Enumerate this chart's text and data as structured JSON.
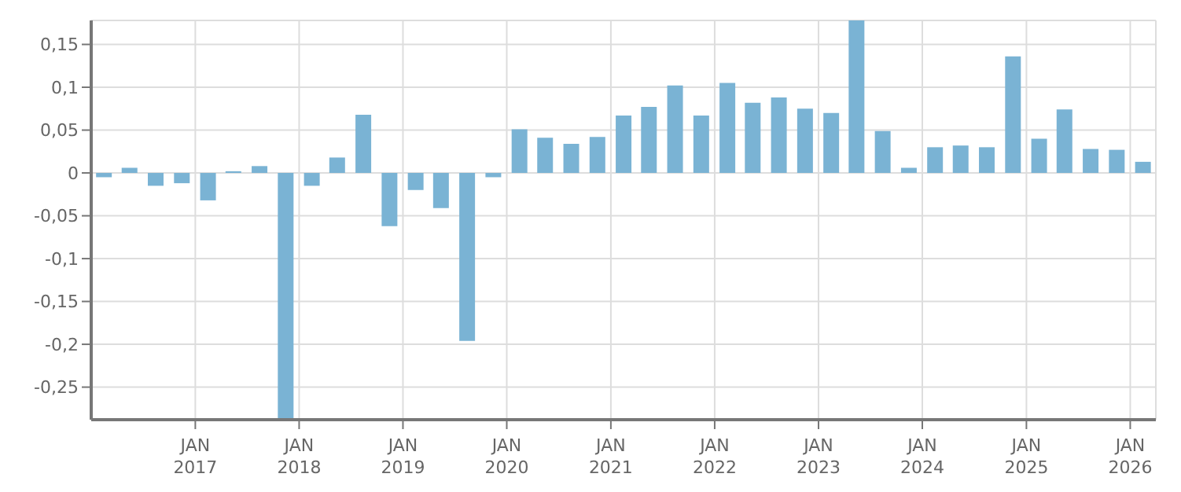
{
  "chart_data": {
    "type": "bar",
    "x": [
      "2016-02-15",
      "2016-05-15",
      "2016-08-15",
      "2016-11-15",
      "2017-02-15",
      "2017-05-15",
      "2017-08-15",
      "2017-11-15",
      "2018-02-15",
      "2018-05-15",
      "2018-08-15",
      "2018-11-15",
      "2019-02-15",
      "2019-05-15",
      "2019-08-15",
      "2019-11-15",
      "2020-02-15",
      "2020-05-15",
      "2020-08-15",
      "2020-11-15",
      "2021-02-15",
      "2021-05-15",
      "2021-08-15",
      "2021-11-15",
      "2022-02-15",
      "2022-05-15",
      "2022-08-15",
      "2022-11-15",
      "2023-02-15",
      "2023-05-15",
      "2023-08-15",
      "2023-11-15",
      "2024-02-15",
      "2024-05-15",
      "2024-08-15",
      "2024-11-15",
      "2025-02-15",
      "2025-05-15",
      "2025-08-15",
      "2025-11-15",
      "2026-02-15"
    ],
    "values": [
      -0.005,
      0.006,
      -0.015,
      -0.012,
      -0.032,
      0.002,
      0.008,
      -0.288,
      -0.015,
      0.018,
      0.068,
      -0.062,
      -0.02,
      -0.041,
      -0.196,
      -0.005,
      0.051,
      0.041,
      0.034,
      0.042,
      0.067,
      0.077,
      0.102,
      0.067,
      0.105,
      0.082,
      0.088,
      0.075,
      0.07,
      0.178,
      0.049,
      0.006,
      0.03,
      0.032,
      0.03,
      0.136,
      0.04,
      0.074,
      0.028,
      0.027,
      0.013
    ],
    "color": "#7ab3d4",
    "xlim": [
      "2016-01-01",
      "2026-04-01"
    ],
    "xticks": [
      {
        "value": "2017-01-01",
        "label": "JAN\n2017"
      },
      {
        "value": "2018-01-01",
        "label": "JAN\n2018"
      },
      {
        "value": "2019-01-01",
        "label": "JAN\n2019"
      },
      {
        "value": "2020-01-01",
        "label": "JAN\n2020"
      },
      {
        "value": "2021-01-01",
        "label": "JAN\n2021"
      },
      {
        "value": "2022-01-01",
        "label": "JAN\n2022"
      },
      {
        "value": "2023-01-01",
        "label": "JAN\n2023"
      },
      {
        "value": "2024-01-01",
        "label": "JAN\n2024"
      },
      {
        "value": "2025-01-01",
        "label": "JAN\n2025"
      },
      {
        "value": "2026-01-01",
        "label": "JAN\n2026"
      }
    ],
    "ylim": [
      -0.288,
      0.178
    ],
    "yticks": [
      {
        "value": -0.25,
        "label": "-0,25"
      },
      {
        "value": -0.2,
        "label": "-0,2"
      },
      {
        "value": -0.15,
        "label": "-0,15"
      },
      {
        "value": -0.1,
        "label": "-0,1"
      },
      {
        "value": -0.05,
        "label": "-0,05"
      },
      {
        "value": 0,
        "label": "0"
      },
      {
        "value": 0.05,
        "label": "0,05"
      },
      {
        "value": 0.1,
        "label": "0,1"
      },
      {
        "value": 0.15,
        "label": "0,15"
      }
    ],
    "grid": true
  }
}
